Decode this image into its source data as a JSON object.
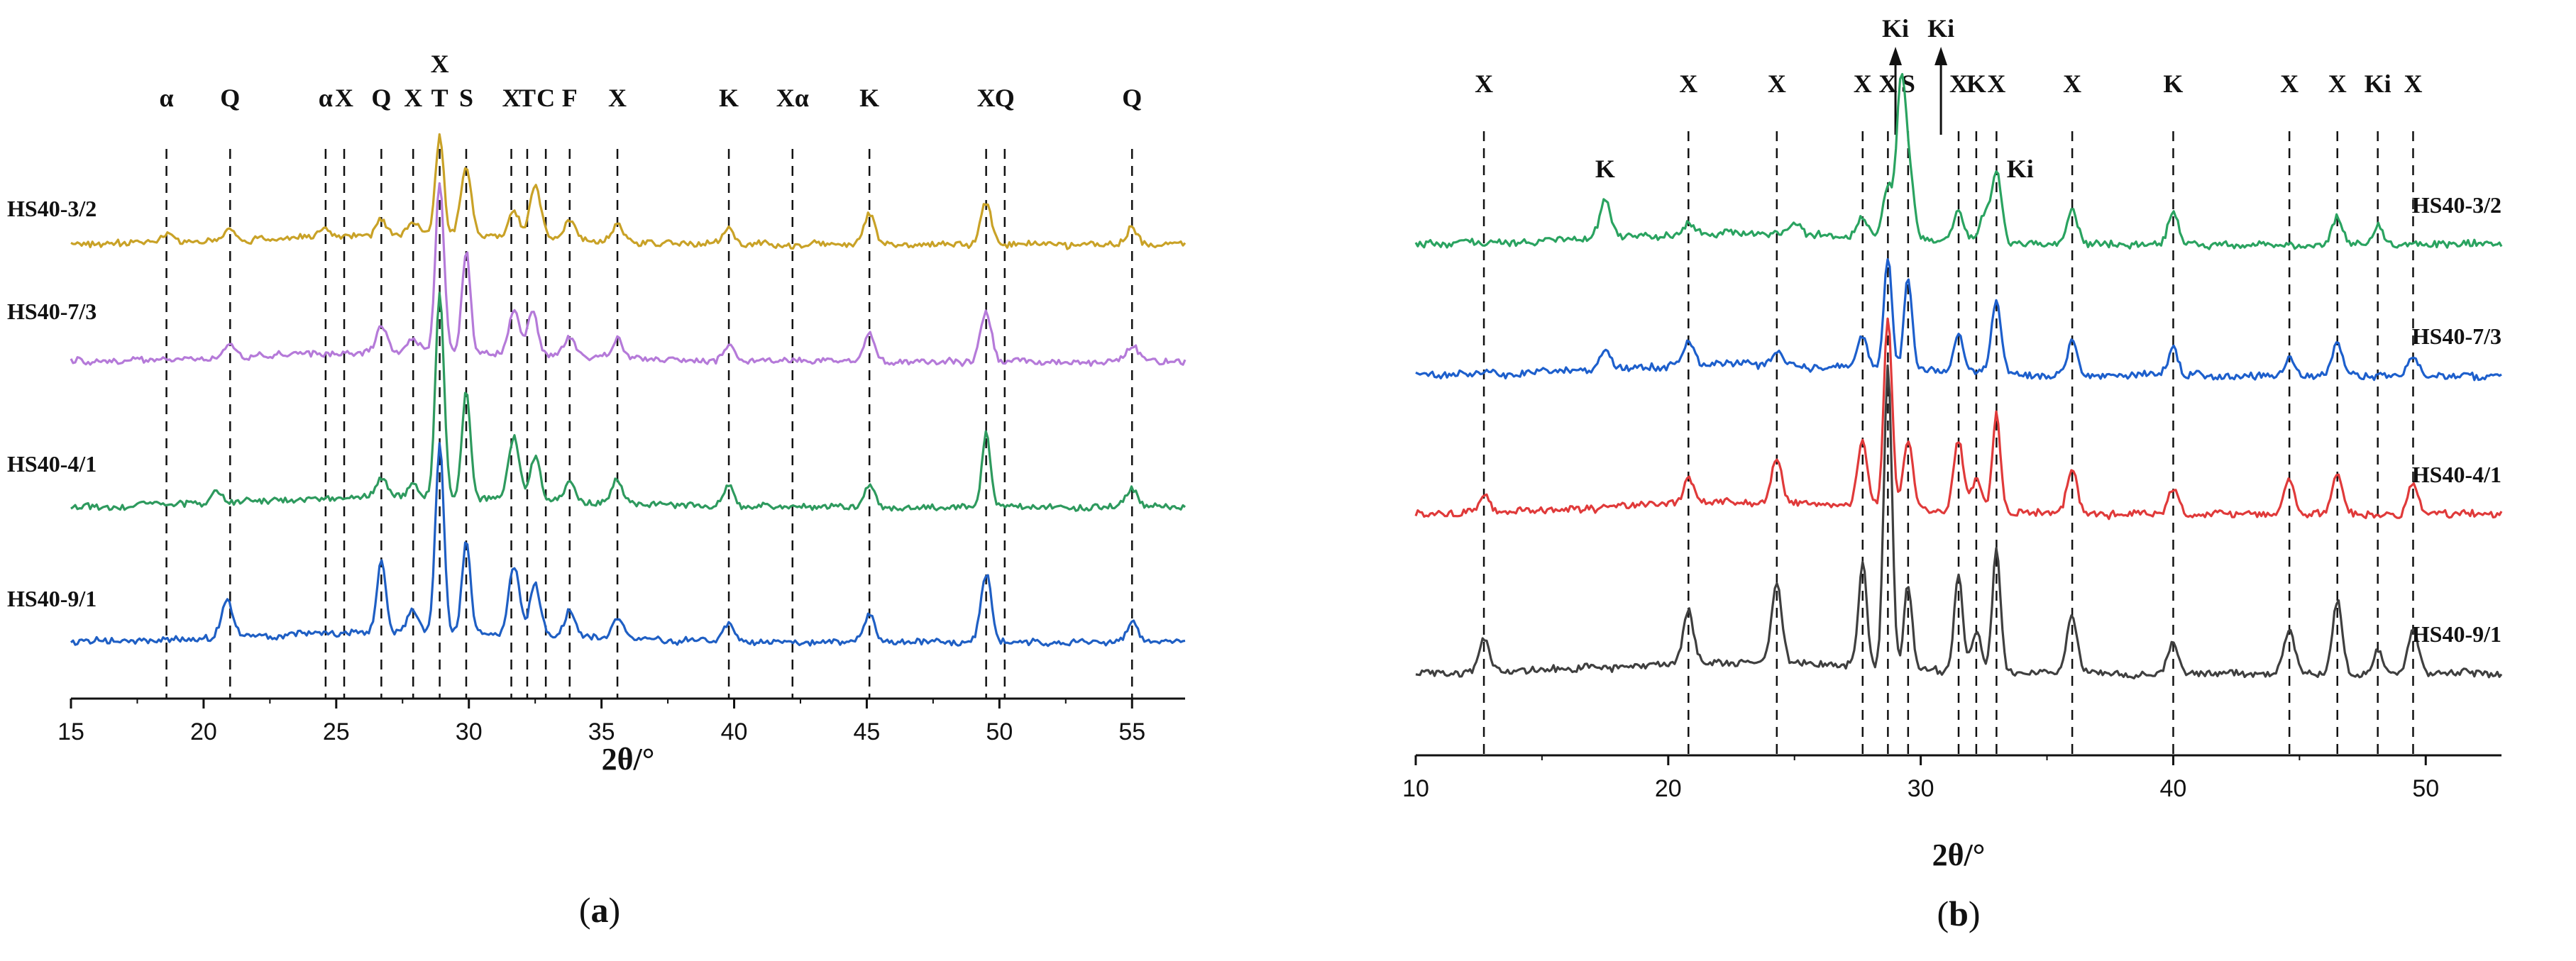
{
  "chart_data": [
    {
      "id": "a",
      "type": "line",
      "panel_label": "a",
      "xlabel": "2θ/°",
      "xlim": [
        15,
        57
      ],
      "x_ticks": [
        15,
        20,
        25,
        30,
        35,
        40,
        45,
        50,
        55
      ],
      "grid": false,
      "colors": [
        "#c9a227",
        "#b57ad9",
        "#2e9a5e",
        "#1f5fc4"
      ],
      "reference_lines": [
        {
          "x": 18.6,
          "label": "α",
          "tier": 0
        },
        {
          "x": 21.0,
          "label": "Q",
          "tier": 0
        },
        {
          "x": 24.6,
          "label": "α",
          "tier": 0
        },
        {
          "x": 25.3,
          "label": "X",
          "tier": 0
        },
        {
          "x": 26.7,
          "label": "Q",
          "tier": 0
        },
        {
          "x": 27.9,
          "label": "X",
          "tier": 0
        },
        {
          "x": 28.9,
          "label": "X",
          "tier": 1
        },
        {
          "x": 28.9,
          "label": "T",
          "tier": 0
        },
        {
          "x": 29.9,
          "label": "S",
          "tier": 0
        },
        {
          "x": 31.6,
          "label": "X",
          "tier": 0
        },
        {
          "x": 32.2,
          "label": "T",
          "tier": 0
        },
        {
          "x": 32.9,
          "label": "C",
          "tier": 0
        },
        {
          "x": 33.8,
          "label": "F",
          "tier": 0
        },
        {
          "x": 35.6,
          "label": "X",
          "tier": 0
        },
        {
          "x": 39.8,
          "label": "K",
          "tier": 0
        },
        {
          "x": 42.2,
          "label": "Xα",
          "tier": 0
        },
        {
          "x": 45.1,
          "label": "K",
          "tier": 0
        },
        {
          "x": 49.5,
          "label": "X",
          "tier": 0
        },
        {
          "x": 50.2,
          "label": "Q",
          "tier": 0
        },
        {
          "x": 55.0,
          "label": "Q",
          "tier": 0
        }
      ],
      "series": [
        {
          "name": "HS40-3/2",
          "color": "#c9a227",
          "peaks": [
            [
              18.6,
              3
            ],
            [
              21.0,
              4
            ],
            [
              24.6,
              2
            ],
            [
              26.7,
              5
            ],
            [
              27.9,
              4
            ],
            [
              28.9,
              34
            ],
            [
              29.9,
              24
            ],
            [
              31.7,
              10
            ],
            [
              32.5,
              19
            ],
            [
              33.8,
              6
            ],
            [
              35.6,
              6
            ],
            [
              39.8,
              5
            ],
            [
              45.1,
              11
            ],
            [
              49.5,
              15
            ],
            [
              55.0,
              6
            ]
          ]
        },
        {
          "name": "HS40-7/3",
          "color": "#b57ad9",
          "peaks": [
            [
              21.0,
              4
            ],
            [
              26.7,
              9
            ],
            [
              27.9,
              5
            ],
            [
              28.9,
              60
            ],
            [
              29.9,
              36
            ],
            [
              31.7,
              16
            ],
            [
              32.4,
              15
            ],
            [
              33.8,
              7
            ],
            [
              35.6,
              7
            ],
            [
              39.8,
              6
            ],
            [
              45.1,
              10
            ],
            [
              49.5,
              18
            ],
            [
              55.0,
              6
            ]
          ]
        },
        {
          "name": "HS40-4/1",
          "color": "#2e9a5e",
          "peaks": [
            [
              20.5,
              4
            ],
            [
              26.7,
              7
            ],
            [
              27.9,
              5
            ],
            [
              28.9,
              72
            ],
            [
              29.9,
              38
            ],
            [
              31.7,
              22
            ],
            [
              32.5,
              16
            ],
            [
              33.8,
              7
            ],
            [
              35.6,
              8
            ],
            [
              39.8,
              7
            ],
            [
              45.1,
              8
            ],
            [
              49.5,
              26
            ],
            [
              55.0,
              7
            ]
          ]
        },
        {
          "name": "HS40-9/1",
          "color": "#1f5fc4",
          "peaks": [
            [
              20.8,
              8
            ],
            [
              21.0,
              6
            ],
            [
              26.7,
              26
            ],
            [
              27.9,
              8
            ],
            [
              28.9,
              66
            ],
            [
              29.9,
              32
            ],
            [
              31.7,
              24
            ],
            [
              32.5,
              18
            ],
            [
              33.8,
              9
            ],
            [
              35.6,
              7
            ],
            [
              39.8,
              6
            ],
            [
              45.1,
              10
            ],
            [
              49.5,
              24
            ],
            [
              55.0,
              7
            ]
          ]
        }
      ]
    },
    {
      "id": "b",
      "type": "line",
      "panel_label": "b",
      "xlabel": "2θ/°",
      "xlim": [
        10,
        53
      ],
      "x_ticks": [
        10,
        20,
        30,
        40,
        50
      ],
      "grid": false,
      "colors": [
        "#2aa360",
        "#1d5fcc",
        "#e03a3a",
        "#3f3f3f"
      ],
      "reference_lines": [
        {
          "x": 12.7,
          "label": "X",
          "tier": 0
        },
        {
          "x": 20.8,
          "label": "X",
          "tier": 0
        },
        {
          "x": 24.3,
          "label": "X",
          "tier": 0
        },
        {
          "x": 27.7,
          "label": "X",
          "tier": 0
        },
        {
          "x": 28.7,
          "label": "X",
          "tier": 0
        },
        {
          "x": 29.5,
          "label": "S",
          "tier": 0
        },
        {
          "x": 31.5,
          "label": "X",
          "tier": 0
        },
        {
          "x": 32.2,
          "label": "K",
          "tier": 0
        },
        {
          "x": 33.0,
          "label": "X",
          "tier": 0
        },
        {
          "x": 36.0,
          "label": "X",
          "tier": 0
        },
        {
          "x": 40.0,
          "label": "K",
          "tier": 0
        },
        {
          "x": 44.6,
          "label": "X",
          "tier": 0
        },
        {
          "x": 46.5,
          "label": "X",
          "tier": 0
        },
        {
          "x": 48.1,
          "label": "Ki",
          "tier": 0
        },
        {
          "x": 49.5,
          "label": "X",
          "tier": 0
        }
      ],
      "arrow_labels": [
        {
          "x": 29.0,
          "label": "Ki"
        },
        {
          "x": 30.8,
          "label": "Ki"
        }
      ],
      "inline_labels": [
        {
          "x": 17.5,
          "label": "K",
          "series": 0
        },
        {
          "x": 33.6,
          "label": "Ki",
          "series": 0
        }
      ],
      "series": [
        {
          "name": "HS40-3/2",
          "color": "#2aa360",
          "peaks": [
            [
              17.5,
              12
            ],
            [
              20.8,
              4
            ],
            [
              25.0,
              4
            ],
            [
              27.7,
              6
            ],
            [
              28.7,
              16
            ],
            [
              29.2,
              42
            ],
            [
              29.5,
              24
            ],
            [
              31.5,
              10
            ],
            [
              32.5,
              8
            ],
            [
              33.0,
              22
            ],
            [
              36.0,
              10
            ],
            [
              40.0,
              10
            ],
            [
              46.5,
              8
            ],
            [
              48.1,
              6
            ]
          ]
        },
        {
          "name": "HS40-7/3",
          "color": "#1d5fcc",
          "peaks": [
            [
              17.5,
              6
            ],
            [
              20.8,
              8
            ],
            [
              24.3,
              4
            ],
            [
              27.7,
              10
            ],
            [
              28.7,
              34
            ],
            [
              29.5,
              28
            ],
            [
              31.5,
              12
            ],
            [
              33.0,
              22
            ],
            [
              36.0,
              10
            ],
            [
              40.0,
              8
            ],
            [
              44.6,
              6
            ],
            [
              46.5,
              10
            ],
            [
              49.5,
              6
            ]
          ]
        },
        {
          "name": "HS40-4/1",
          "color": "#e03a3a",
          "peaks": [
            [
              12.7,
              5
            ],
            [
              20.8,
              8
            ],
            [
              24.3,
              14
            ],
            [
              27.7,
              20
            ],
            [
              28.7,
              58
            ],
            [
              29.5,
              20
            ],
            [
              31.5,
              22
            ],
            [
              32.2,
              10
            ],
            [
              33.0,
              30
            ],
            [
              36.0,
              14
            ],
            [
              40.0,
              8
            ],
            [
              44.6,
              10
            ],
            [
              46.5,
              12
            ],
            [
              49.5,
              10
            ]
          ]
        },
        {
          "name": "HS40-9/1",
          "color": "#3f3f3f",
          "peaks": [
            [
              12.7,
              10
            ],
            [
              20.8,
              16
            ],
            [
              24.3,
              24
            ],
            [
              27.7,
              32
            ],
            [
              28.7,
              92
            ],
            [
              29.5,
              26
            ],
            [
              31.5,
              30
            ],
            [
              32.2,
              12
            ],
            [
              33.0,
              38
            ],
            [
              36.0,
              18
            ],
            [
              40.0,
              10
            ],
            [
              44.6,
              14
            ],
            [
              46.5,
              22
            ],
            [
              48.1,
              8
            ],
            [
              49.5,
              14
            ]
          ]
        }
      ]
    }
  ]
}
